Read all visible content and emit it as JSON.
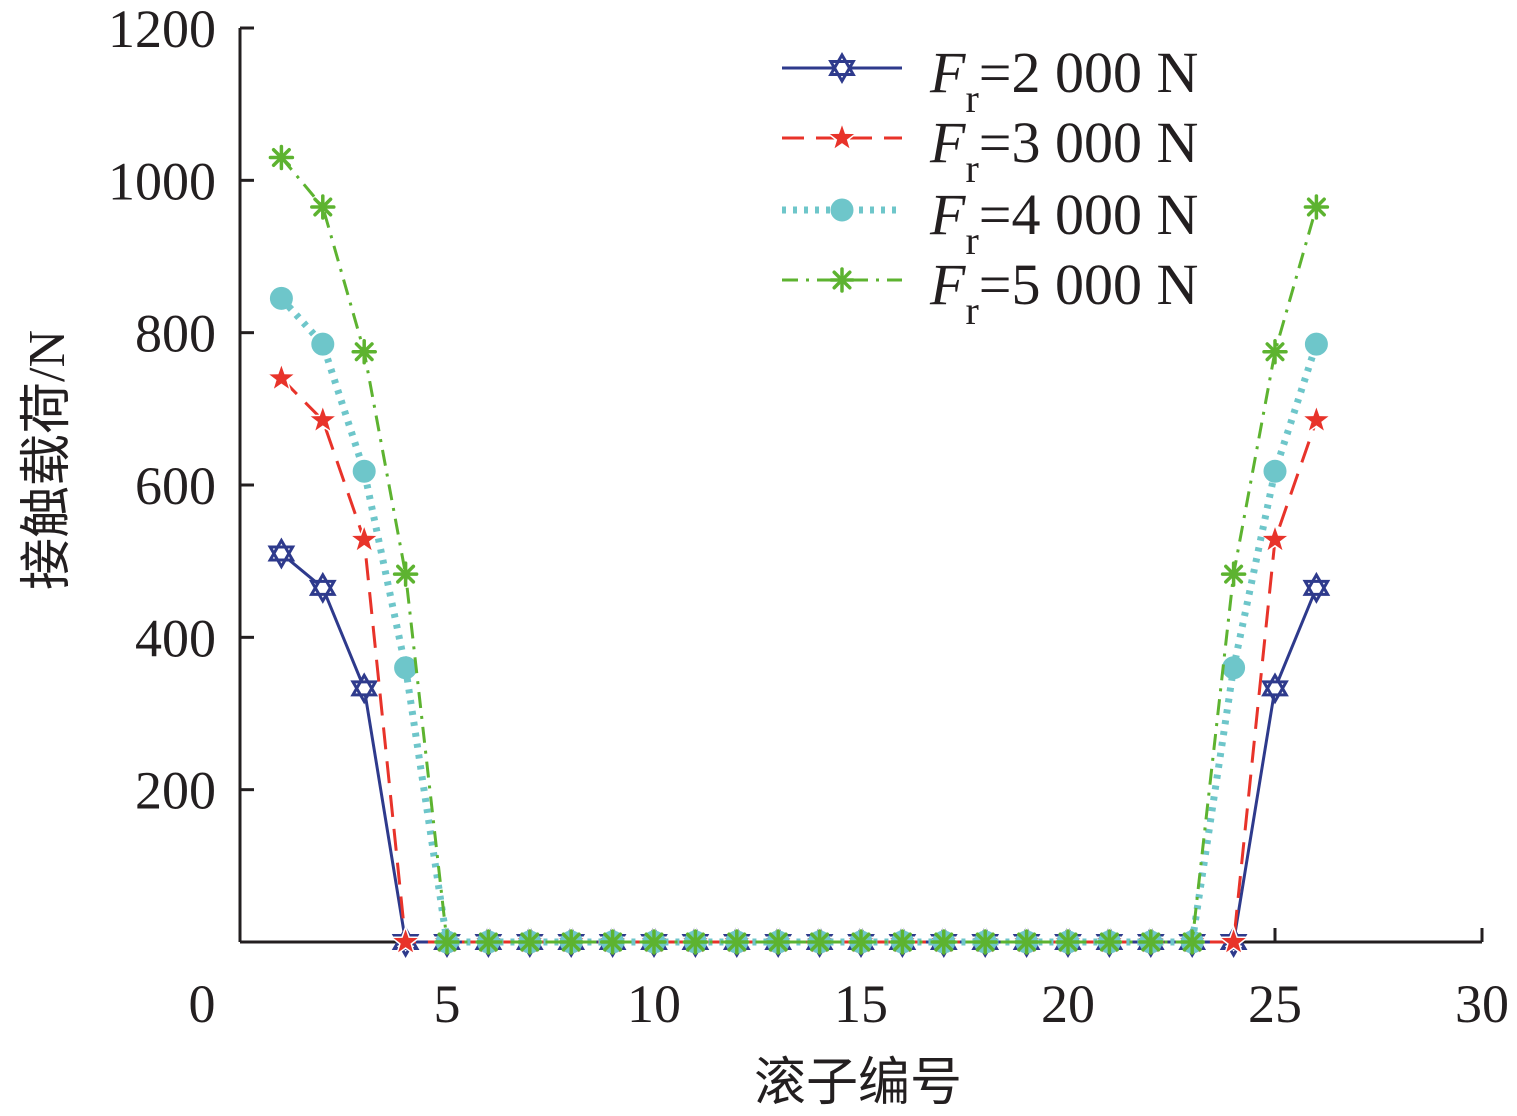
{
  "chart_data": {
    "type": "line",
    "title": "",
    "xlabel": "滚子编号",
    "ylabel": "接触载荷/N",
    "xlim": [
      0,
      30
    ],
    "ylim": [
      0,
      1200
    ],
    "xticks": [
      0,
      5,
      10,
      15,
      20,
      25,
      30
    ],
    "yticks": [
      200,
      400,
      600,
      800,
      1000,
      1200
    ],
    "x_tick_labels": [
      "0",
      "5",
      "10",
      "15",
      "20",
      "25",
      "30"
    ],
    "y_tick_labels": [
      "200",
      "400",
      "600",
      "800",
      "1000",
      "1200"
    ],
    "grid": false,
    "legend_position": "top-right",
    "x": [
      1,
      2,
      3,
      4,
      5,
      6,
      7,
      8,
      9,
      10,
      11,
      12,
      13,
      14,
      15,
      16,
      17,
      18,
      19,
      20,
      21,
      22,
      23,
      24,
      25,
      26
    ],
    "series": [
      {
        "name_main": "F",
        "name_sub": "r",
        "name_rest": "=2 000 N",
        "color": "#2e3a8c",
        "dash": "solid",
        "marker": "hexagram",
        "values": [
          510,
          465,
          333,
          0,
          0,
          0,
          0,
          0,
          0,
          0,
          0,
          0,
          0,
          0,
          0,
          0,
          0,
          0,
          0,
          0,
          0,
          0,
          0,
          0,
          333,
          465
        ]
      },
      {
        "name_main": "F",
        "name_sub": "r",
        "name_rest": "=3 000 N",
        "color": "#e8332a",
        "dash": "dashed",
        "marker": "pentagram",
        "values": [
          740,
          685,
          528,
          0,
          0,
          0,
          0,
          0,
          0,
          0,
          0,
          0,
          0,
          0,
          0,
          0,
          0,
          0,
          0,
          0,
          0,
          0,
          0,
          0,
          528,
          685
        ]
      },
      {
        "name_main": "F",
        "name_sub": "r",
        "name_rest": "=4 000 N",
        "color": "#6ec6ca",
        "dash": "dotted",
        "marker": "circle",
        "values": [
          845,
          785,
          618,
          360,
          0,
          0,
          0,
          0,
          0,
          0,
          0,
          0,
          0,
          0,
          0,
          0,
          0,
          0,
          0,
          0,
          0,
          0,
          0,
          360,
          618,
          785
        ]
      },
      {
        "name_main": "F",
        "name_sub": "r",
        "name_rest": "=5 000 N",
        "color": "#5db330",
        "dash": "dashdot",
        "marker": "asterisk",
        "values": [
          1030,
          965,
          775,
          483,
          0,
          0,
          0,
          0,
          0,
          0,
          0,
          0,
          0,
          0,
          0,
          0,
          0,
          0,
          0,
          0,
          0,
          0,
          0,
          483,
          775,
          965
        ]
      }
    ]
  }
}
